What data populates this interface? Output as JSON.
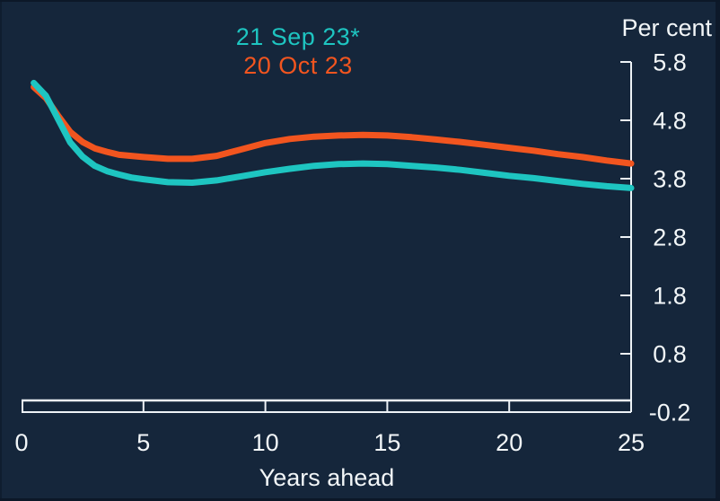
{
  "window": {
    "background": "#15263B",
    "edge_color": "#0C1828",
    "axis_color": "#EDF2F6",
    "text_color": "#F2F6F8"
  },
  "chart_data": {
    "type": "line",
    "title": "",
    "ylabel": "Per cent",
    "xlabel": "Years ahead",
    "xlim": [
      0,
      25
    ],
    "ylim": [
      -0.2,
      5.8
    ],
    "x_ticks": [
      0,
      5,
      10,
      15,
      20,
      25
    ],
    "y_ticks": [
      5.8,
      4.8,
      3.8,
      2.8,
      1.8,
      0.8,
      -0.2
    ],
    "grid": false,
    "legend_position": "top-center",
    "x": [
      0.5,
      1,
      1.5,
      2,
      2.5,
      3,
      3.5,
      4,
      4.5,
      5,
      6,
      7,
      8,
      9,
      10,
      11,
      12,
      13,
      14,
      15,
      16,
      17,
      18,
      19,
      20,
      21,
      22,
      23,
      24,
      25
    ],
    "series": [
      {
        "name": "21 Sep 23*",
        "color": "#1EC5C1",
        "values": [
          5.44,
          5.22,
          4.82,
          4.42,
          4.18,
          4.02,
          3.93,
          3.87,
          3.82,
          3.79,
          3.74,
          3.73,
          3.77,
          3.84,
          3.91,
          3.97,
          4.02,
          4.05,
          4.06,
          4.05,
          4.02,
          3.99,
          3.95,
          3.9,
          3.85,
          3.81,
          3.76,
          3.71,
          3.67,
          3.64
        ]
      },
      {
        "name": "20 Oct 23",
        "color": "#F2551F",
        "values": [
          5.37,
          5.18,
          4.88,
          4.6,
          4.43,
          4.32,
          4.26,
          4.21,
          4.19,
          4.17,
          4.14,
          4.14,
          4.19,
          4.3,
          4.41,
          4.48,
          4.52,
          4.54,
          4.55,
          4.54,
          4.51,
          4.47,
          4.43,
          4.38,
          4.33,
          4.28,
          4.22,
          4.17,
          4.11,
          4.06
        ]
      }
    ]
  }
}
